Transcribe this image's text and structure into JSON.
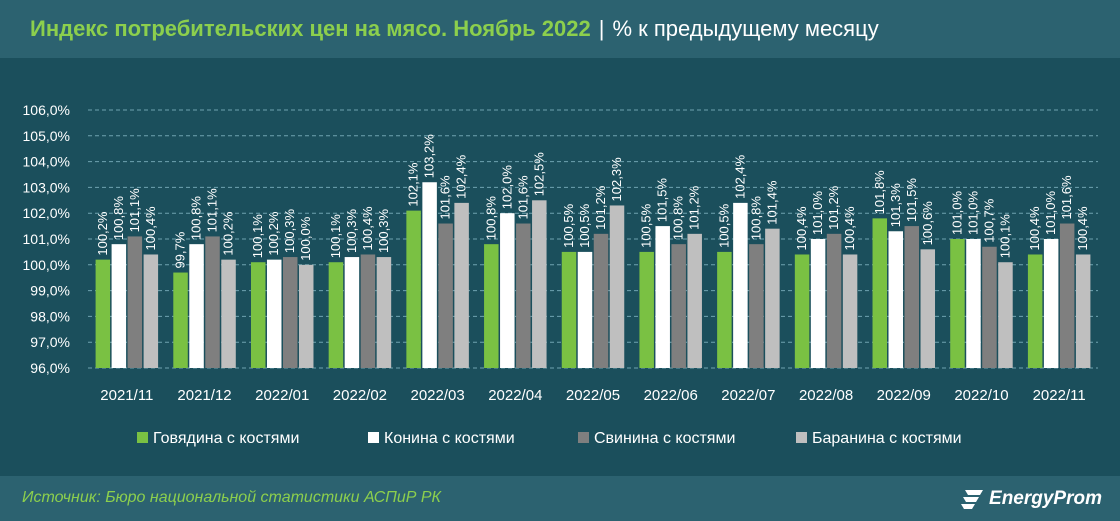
{
  "header": {
    "title": "Индекс потребительских цен на мясо. Ноябрь 2022",
    "separator": "|",
    "subtitle": "% к предыдущему месяцу"
  },
  "footer": {
    "source": "Источник: Бюро национальной статистики АСПиР РК",
    "logo_text": "EnergyProm"
  },
  "colors": {
    "beef": "#7ac143",
    "horse": "#ffffff",
    "pork": "#7f7f7f",
    "lamb": "#bfbfbf"
  },
  "chart_data": {
    "type": "bar",
    "title": "",
    "xlabel": "",
    "ylabel": "",
    "ylim": [
      96,
      106
    ],
    "yticks": [
      "96,0%",
      "97,0%",
      "98,0%",
      "99,0%",
      "100,0%",
      "101,0%",
      "102,0%",
      "103,0%",
      "104,0%",
      "105,0%",
      "106,0%"
    ],
    "grid": true,
    "legend_position": "bottom",
    "categories": [
      "2021/11",
      "2021/12",
      "2022/01",
      "2022/02",
      "2022/03",
      "2022/04",
      "2022/05",
      "2022/06",
      "2022/07",
      "2022/08",
      "2022/09",
      "2022/10",
      "2022/11"
    ],
    "series": [
      {
        "name": "Говядина с костями",
        "color": "#7ac143",
        "values": [
          100.2,
          99.7,
          100.1,
          100.1,
          102.1,
          100.8,
          100.5,
          100.5,
          100.5,
          100.4,
          101.8,
          101.0,
          100.4
        ],
        "labels": [
          "100,2%",
          "99,7%",
          "100,1%",
          "100,1%",
          "102,1%",
          "100,8%",
          "100,5%",
          "100,5%",
          "100,5%",
          "100,4%",
          "101,8%",
          "101,0%",
          "100,4%"
        ]
      },
      {
        "name": "Конина с костями",
        "color": "#ffffff",
        "values": [
          100.8,
          100.8,
          100.2,
          100.3,
          103.2,
          102.0,
          100.5,
          101.5,
          102.4,
          101.0,
          101.3,
          101.0,
          101.0
        ],
        "labels": [
          "100,8%",
          "100,8%",
          "100,2%",
          "100,3%",
          "103,2%",
          "102,0%",
          "100,5%",
          "101,5%",
          "102,4%",
          "101,0%",
          "101,3%",
          "101,0%",
          "101,0%"
        ]
      },
      {
        "name": "Свинина с костями",
        "color": "#7f7f7f",
        "values": [
          101.1,
          101.1,
          100.3,
          100.4,
          101.6,
          101.6,
          101.2,
          100.8,
          100.8,
          101.2,
          101.5,
          100.7,
          101.6
        ],
        "labels": [
          "101,1%",
          "101,1%",
          "100,3%",
          "100,4%",
          "101,6%",
          "101,6%",
          "101,2%",
          "100,8%",
          "100,8%",
          "101,2%",
          "101,5%",
          "100,7%",
          "101,6%"
        ]
      },
      {
        "name": "Баранина с костями",
        "color": "#bfbfbf",
        "values": [
          100.4,
          100.2,
          100.0,
          100.3,
          102.4,
          102.5,
          102.3,
          101.2,
          101.4,
          100.4,
          100.6,
          100.1,
          100.4
        ],
        "labels": [
          "100,4%",
          "100,2%",
          "100,0%",
          "100,3%",
          "102,4%",
          "102,5%",
          "102,3%",
          "101,2%",
          "101,4%",
          "100,4%",
          "100,6%",
          "100,1%",
          "100,4%"
        ]
      }
    ]
  }
}
